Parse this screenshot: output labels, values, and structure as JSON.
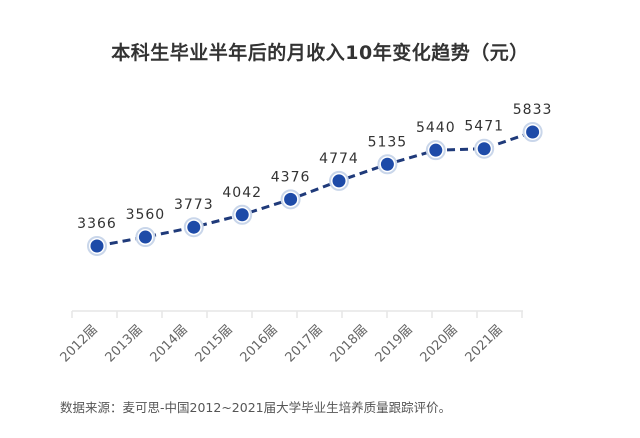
{
  "title": "本科生毕业半年后的月收入10年变化趋势（元）",
  "source": "数据来源：麦可思-中国2012~2021届大学毕业生培养质量跟踪评价。",
  "colors": {
    "line": "#1f3a7a",
    "marker_fill": "#1e4ba8",
    "marker_ring": "#c9d6ea",
    "axis": "#e6e6e6",
    "label": "#333333"
  },
  "chart_data": {
    "type": "line",
    "title": "本科生毕业半年后的月收入10年变化趋势（元）",
    "xlabel": "",
    "ylabel": "",
    "categories": [
      "2012届",
      "2013届",
      "2014届",
      "2015届",
      "2016届",
      "2017届",
      "2018届",
      "2019届",
      "2020届",
      "2021届"
    ],
    "series": [
      {
        "name": "月收入（元）",
        "values": [
          3366,
          3560,
          3773,
          4042,
          4376,
          4774,
          5135,
          5440,
          5471,
          5833
        ]
      }
    ],
    "data_labels": [
      "3366",
      "3560",
      "3773",
      "4042",
      "4376",
      "4774",
      "5135",
      "5440",
      "5471",
      "5833"
    ],
    "line_style": "dashed",
    "markers": "circle",
    "grid": false,
    "legend": "none",
    "y_axis_visible": false,
    "annotation": "数据来源：麦可思-中国2012~2021届大学毕业生培养质量跟踪评价。"
  }
}
